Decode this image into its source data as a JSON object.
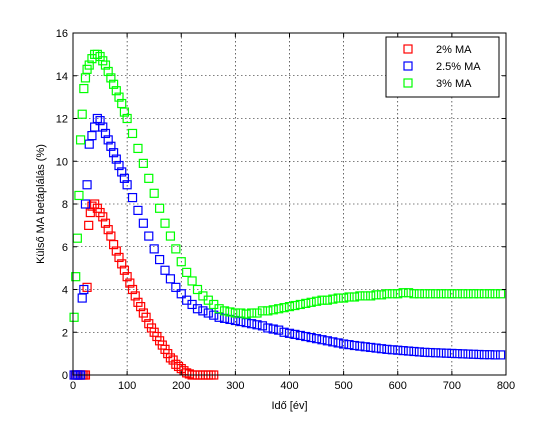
{
  "chart_data": {
    "type": "scatter",
    "xlabel": "Idő [év]",
    "ylabel": "Külső MA betáplálás (%)",
    "xlim": [
      0,
      800
    ],
    "ylim": [
      0,
      16
    ],
    "xticks": [
      0,
      100,
      200,
      300,
      400,
      500,
      600,
      700,
      800
    ],
    "yticks": [
      0,
      2,
      4,
      6,
      8,
      10,
      12,
      14,
      16
    ],
    "grid": true,
    "grid_style": "dotted",
    "legend_position": "top-right",
    "marker": "hollow-square",
    "series": [
      {
        "name": "2% MA",
        "color": "#ff0000",
        "x": [
          2,
          5,
          8,
          11,
          14,
          17,
          20,
          23,
          26,
          29,
          32,
          35,
          40,
          45,
          50,
          55,
          60,
          65,
          70,
          75,
          80,
          85,
          90,
          95,
          100,
          105,
          110,
          115,
          120,
          125,
          130,
          135,
          140,
          145,
          150,
          155,
          160,
          165,
          170,
          175,
          180,
          185,
          190,
          195,
          200,
          205,
          210,
          215,
          220,
          225,
          230,
          235,
          240,
          245,
          250,
          255,
          260
        ],
        "y": [
          0,
          0,
          0,
          0,
          0,
          0,
          0,
          0,
          4.1,
          7.0,
          7.6,
          7.9,
          8.0,
          7.8,
          7.6,
          7.4,
          7.1,
          6.8,
          6.5,
          6.1,
          5.8,
          5.5,
          5.2,
          4.9,
          4.6,
          4.3,
          4.0,
          3.7,
          3.4,
          3.2,
          2.9,
          2.7,
          2.4,
          2.2,
          2.0,
          1.8,
          1.6,
          1.4,
          1.2,
          1.0,
          0.8,
          0.7,
          0.5,
          0.4,
          0.3,
          0.2,
          0.1,
          0.05,
          0,
          0,
          0,
          0,
          0,
          0,
          0,
          0,
          0
        ]
      },
      {
        "name": "2.5% MA",
        "color": "#0000ff",
        "x": [
          2,
          5,
          8,
          11,
          14,
          17,
          20,
          23,
          26,
          30,
          35,
          40,
          45,
          50,
          55,
          60,
          65,
          70,
          75,
          80,
          85,
          90,
          95,
          100,
          110,
          120,
          130,
          140,
          150,
          160,
          170,
          180,
          190,
          200,
          210,
          220,
          230,
          240,
          250,
          260,
          270,
          280,
          290,
          300,
          310,
          320,
          330,
          340,
          350,
          360,
          370,
          380,
          390,
          400,
          410,
          420,
          430,
          440,
          450,
          460,
          470,
          480,
          490,
          500,
          510,
          520,
          530,
          540,
          550,
          560,
          570,
          580,
          590,
          600,
          610,
          620,
          630,
          640,
          650,
          660,
          670,
          680,
          690,
          700,
          710,
          720,
          730,
          740,
          750,
          760,
          770,
          780,
          790
        ],
        "y": [
          0,
          0,
          0,
          0,
          0,
          3.6,
          4.0,
          8.0,
          8.9,
          10.8,
          11.2,
          11.6,
          12.0,
          11.9,
          11.6,
          11.3,
          11.0,
          10.7,
          10.4,
          10.1,
          9.8,
          9.5,
          9.2,
          8.9,
          8.3,
          7.7,
          7.1,
          6.5,
          5.9,
          5.4,
          4.9,
          4.5,
          4.1,
          3.8,
          3.5,
          3.3,
          3.1,
          3.0,
          2.9,
          2.8,
          2.7,
          2.65,
          2.6,
          2.55,
          2.5,
          2.45,
          2.4,
          2.35,
          2.3,
          2.2,
          2.15,
          2.1,
          2.0,
          1.95,
          1.9,
          1.85,
          1.8,
          1.75,
          1.7,
          1.65,
          1.6,
          1.55,
          1.5,
          1.45,
          1.42,
          1.38,
          1.35,
          1.32,
          1.29,
          1.26,
          1.23,
          1.2,
          1.18,
          1.16,
          1.14,
          1.12,
          1.1,
          1.08,
          1.06,
          1.05,
          1.04,
          1.03,
          1.02,
          1.01,
          1.0,
          0.99,
          0.98,
          0.97,
          0.96,
          0.95,
          0.95,
          0.94,
          0.94
        ]
      },
      {
        "name": "3% MA",
        "color": "#00ff00",
        "x": [
          2,
          5,
          8,
          11,
          14,
          17,
          20,
          23,
          26,
          30,
          35,
          40,
          45,
          50,
          55,
          60,
          65,
          70,
          75,
          80,
          85,
          90,
          95,
          100,
          110,
          120,
          130,
          140,
          150,
          160,
          170,
          180,
          190,
          200,
          210,
          220,
          230,
          240,
          250,
          260,
          270,
          280,
          290,
          300,
          310,
          320,
          330,
          340,
          350,
          360,
          370,
          380,
          390,
          400,
          410,
          420,
          430,
          440,
          450,
          460,
          470,
          480,
          490,
          500,
          510,
          520,
          530,
          540,
          550,
          560,
          570,
          580,
          590,
          600,
          610,
          620,
          630,
          640,
          650,
          660,
          670,
          680,
          690,
          700,
          710,
          720,
          730,
          740,
          750,
          760,
          770,
          780,
          790
        ],
        "y": [
          2.7,
          4.6,
          6.4,
          8.4,
          11.0,
          12.2,
          13.4,
          13.9,
          14.3,
          14.5,
          14.8,
          15.0,
          15.0,
          14.9,
          14.7,
          14.5,
          14.2,
          13.9,
          13.6,
          13.3,
          13.0,
          12.7,
          12.3,
          12.0,
          11.3,
          10.6,
          9.9,
          9.2,
          8.5,
          7.8,
          7.1,
          6.5,
          5.9,
          5.3,
          4.8,
          4.4,
          4.0,
          3.7,
          3.5,
          3.3,
          3.1,
          3.0,
          2.95,
          2.9,
          2.9,
          2.85,
          2.9,
          2.9,
          3.0,
          3.0,
          3.05,
          3.1,
          3.15,
          3.2,
          3.25,
          3.3,
          3.35,
          3.4,
          3.45,
          3.5,
          3.5,
          3.55,
          3.6,
          3.6,
          3.65,
          3.65,
          3.7,
          3.7,
          3.7,
          3.75,
          3.75,
          3.8,
          3.8,
          3.8,
          3.85,
          3.85,
          3.8,
          3.8,
          3.8,
          3.8,
          3.8,
          3.8,
          3.8,
          3.8,
          3.8,
          3.8,
          3.8,
          3.8,
          3.8,
          3.8,
          3.8,
          3.8,
          3.8
        ]
      }
    ]
  }
}
